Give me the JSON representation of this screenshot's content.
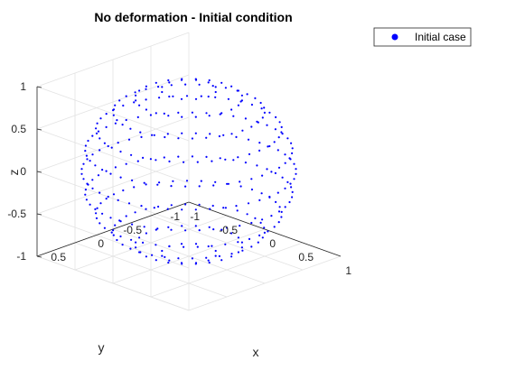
{
  "chart_data": {
    "type": "scatter3d",
    "title": "No deformation - Initial condition",
    "xlabel": "x",
    "ylabel": "y",
    "zlabel": "z",
    "xlim": [
      -1,
      1
    ],
    "ylim": [
      -1,
      1
    ],
    "zlim": [
      -1,
      1
    ],
    "xticks": [
      "-1",
      "-0.5",
      "0",
      "0.5",
      "1"
    ],
    "yticks": [
      "-1",
      "-0.5",
      "0",
      "0.5"
    ],
    "zticks": [
      "-1",
      "-0.5",
      "0",
      "0.5",
      "1"
    ],
    "grid": true,
    "legend": {
      "position": "top-right"
    },
    "series": [
      {
        "name": "Initial case",
        "color": "#0000ff",
        "marker": "dot",
        "shape": "unit sphere sampled on latitude circles",
        "latitude_circles_deg": [
          -75,
          -60,
          -45,
          -30,
          -15,
          0,
          15,
          30,
          45,
          60,
          75
        ],
        "points_per_circle": [
          12,
          24,
          34,
          41,
          46,
          48,
          46,
          41,
          34,
          24,
          12
        ]
      }
    ]
  }
}
